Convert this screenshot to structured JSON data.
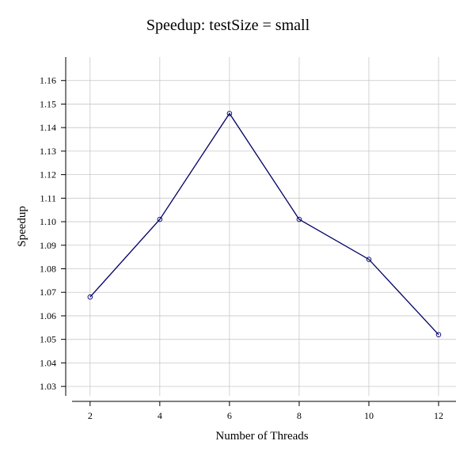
{
  "chart_data": {
    "type": "line",
    "title": "Speedup: testSize = small",
    "xlabel": "Number of Threads",
    "ylabel": "Speedup",
    "x": [
      2,
      4,
      6,
      8,
      10,
      12
    ],
    "series": [
      {
        "values": [
          1.068,
          1.101,
          1.146,
          1.101,
          1.084,
          1.052
        ]
      }
    ],
    "xticks": [
      "2",
      "4",
      "6",
      "8",
      "10",
      "12"
    ],
    "yticks": [
      "1.03",
      "1.04",
      "1.05",
      "1.06",
      "1.07",
      "1.08",
      "1.09",
      "1.10",
      "1.11",
      "1.12",
      "1.13",
      "1.14",
      "1.15",
      "1.16"
    ],
    "xlim": [
      1.3,
      12.5
    ],
    "ylim": [
      1.026,
      1.17
    ],
    "grid": true,
    "marker": "open-circle",
    "colors": {
      "line": "#000066",
      "marker": "#000080",
      "grid": "#c8c8c8"
    }
  }
}
